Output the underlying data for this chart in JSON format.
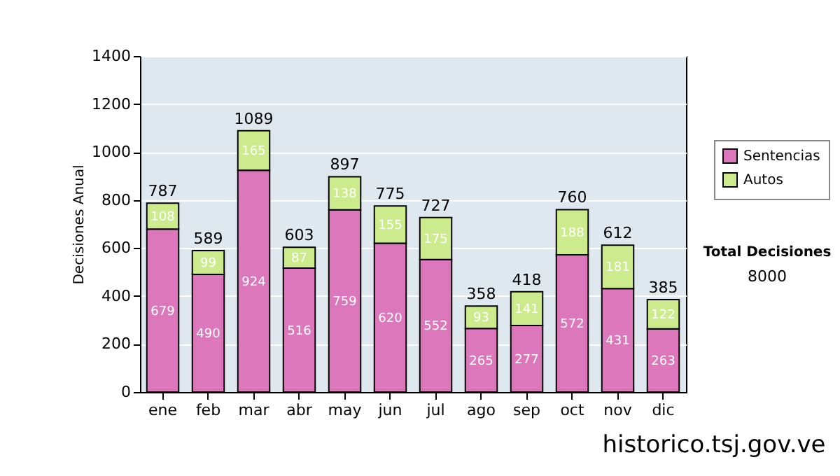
{
  "chart_data": {
    "type": "bar",
    "stacked": true,
    "ylabel": "Decisiones Anual",
    "categories": [
      "ene",
      "feb",
      "mar",
      "abr",
      "may",
      "jun",
      "jul",
      "ago",
      "sep",
      "oct",
      "nov",
      "dic"
    ],
    "series": [
      {
        "name": "Sentencias",
        "color": "#dd77bb",
        "values": [
          679,
          490,
          924,
          516,
          759,
          620,
          552,
          265,
          277,
          572,
          431,
          263
        ]
      },
      {
        "name": "Autos",
        "color": "#cceb8c",
        "values": [
          108,
          99,
          165,
          87,
          138,
          155,
          175,
          93,
          141,
          188,
          181,
          122
        ]
      }
    ],
    "totals": [
      "787",
      "589",
      "1089",
      "603",
      "897",
      "775",
      "727",
      "358",
      "418",
      "760",
      "612",
      "385"
    ],
    "data_labels": true,
    "ylim": [
      0,
      1400
    ],
    "yticks": [
      0,
      200,
      400,
      600,
      800,
      1000,
      1200,
      1400
    ],
    "grid": "y",
    "legend": "right",
    "annotations": [
      "Total Decisiones",
      "8000",
      "historico.tsj.gov.ve"
    ]
  }
}
